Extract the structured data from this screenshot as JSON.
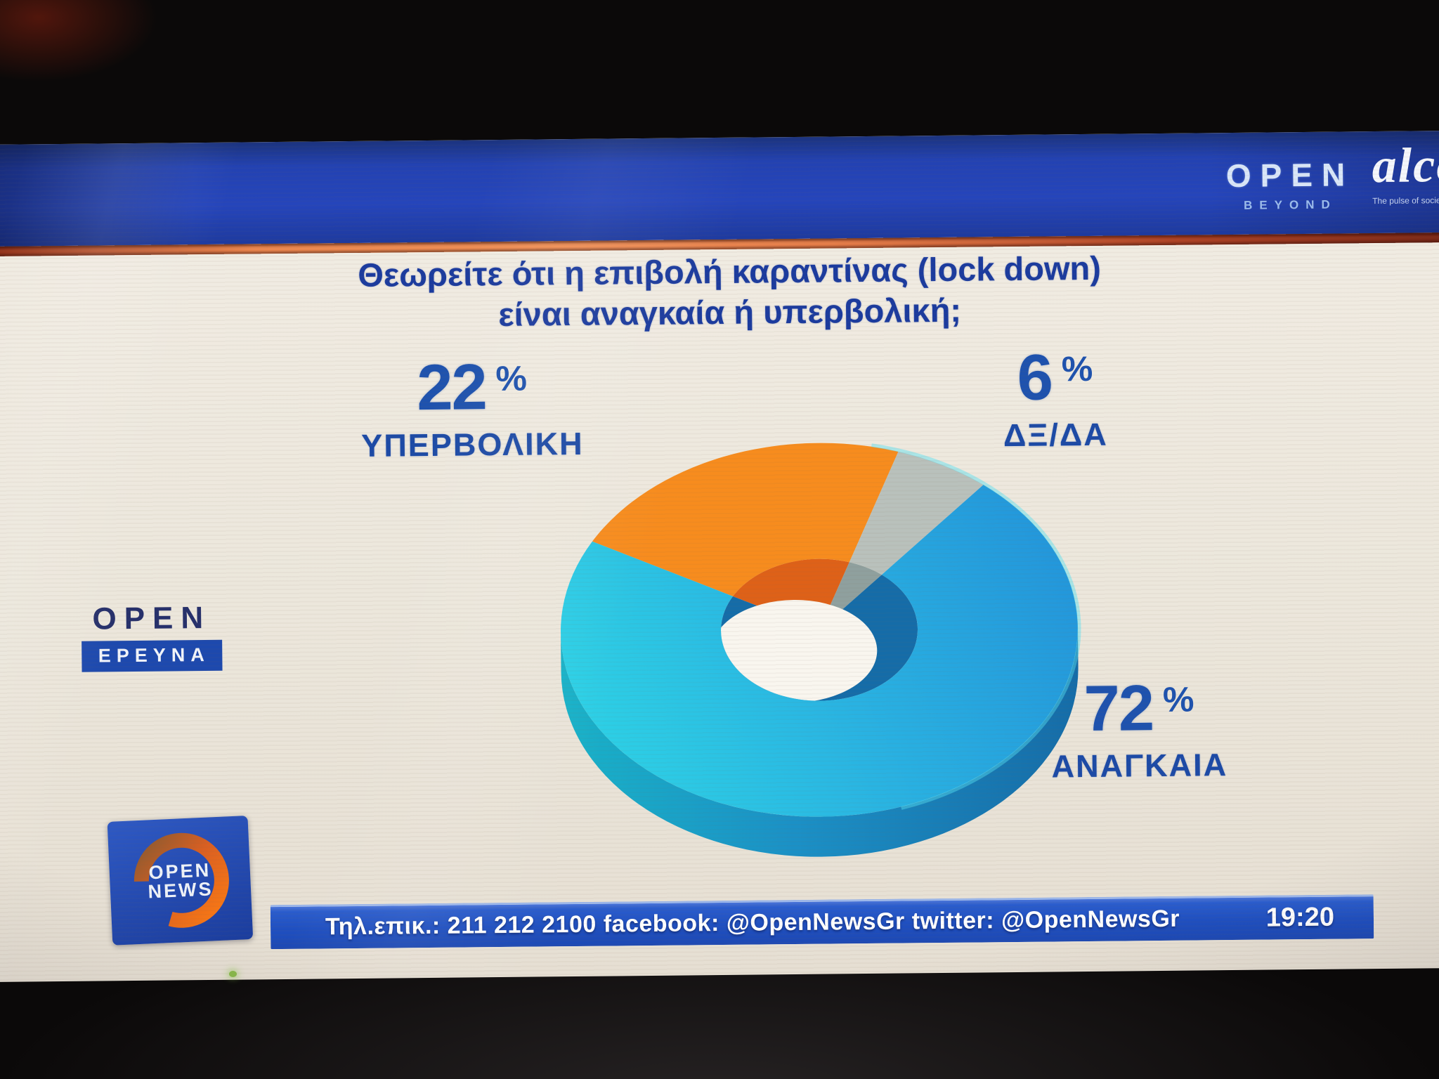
{
  "header": {
    "open_brand": "OPEN",
    "open_sub": "BEYOND",
    "alco_brand": "alco",
    "alco_tagline": "The pulse of society"
  },
  "title": {
    "line1": "Θεωρείτε ότι η επιβολή  καραντίνας (lock down)",
    "line2": "είναι αναγκαία ή υπερβολική;"
  },
  "research_logo": {
    "brand": "OPEN",
    "label": "ΕΡΕΥΝΑ"
  },
  "news_logo": {
    "line1": "OPEN",
    "line2": "NEWS"
  },
  "ticker": {
    "text": "Τηλ.επικ.: 211 212 2100 facebook: @OpenNewsGr twitter: @OpenNewsGr",
    "time": "19:20"
  },
  "colors": {
    "banner_blue": "#2342b2",
    "accent_strip_orange": "#e87f4a",
    "background_cream": "#eee9df",
    "title_blue": "#1b3b9e",
    "label_blue": "#1c4aa6",
    "ticker_blue": "#2052c4",
    "ticker_text": "#ffffff"
  },
  "chart_data": {
    "type": "pie",
    "variant": "3d-donut",
    "title": "Θεωρείτε ότι η επιβολή καραντίνας (lock down) είναι αναγκαία ή υπερβολική;",
    "unit": "%",
    "clockwise": true,
    "start_angle_deg": -61,
    "hole": true,
    "legend": "callout-labels",
    "slices": [
      {
        "label": "ΥΠΕΡΒΟΛΙΚΗ",
        "value": 22,
        "color": "#f78c1e",
        "side_color": "#de6118"
      },
      {
        "label": "ΔΞ/ΔΑ",
        "value": 6,
        "color": "#b9c1bc",
        "side_color": "#8fa09e"
      },
      {
        "label": "ΑΝΑΓΚΑΙΑ",
        "value": 72,
        "color": "#2aa9e0",
        "color_gradient": [
          "#2dd4e6",
          "#29b2e2",
          "#2293da"
        ],
        "side_color": "#156ca8",
        "side_color_left": "#18b2c8"
      }
    ]
  }
}
